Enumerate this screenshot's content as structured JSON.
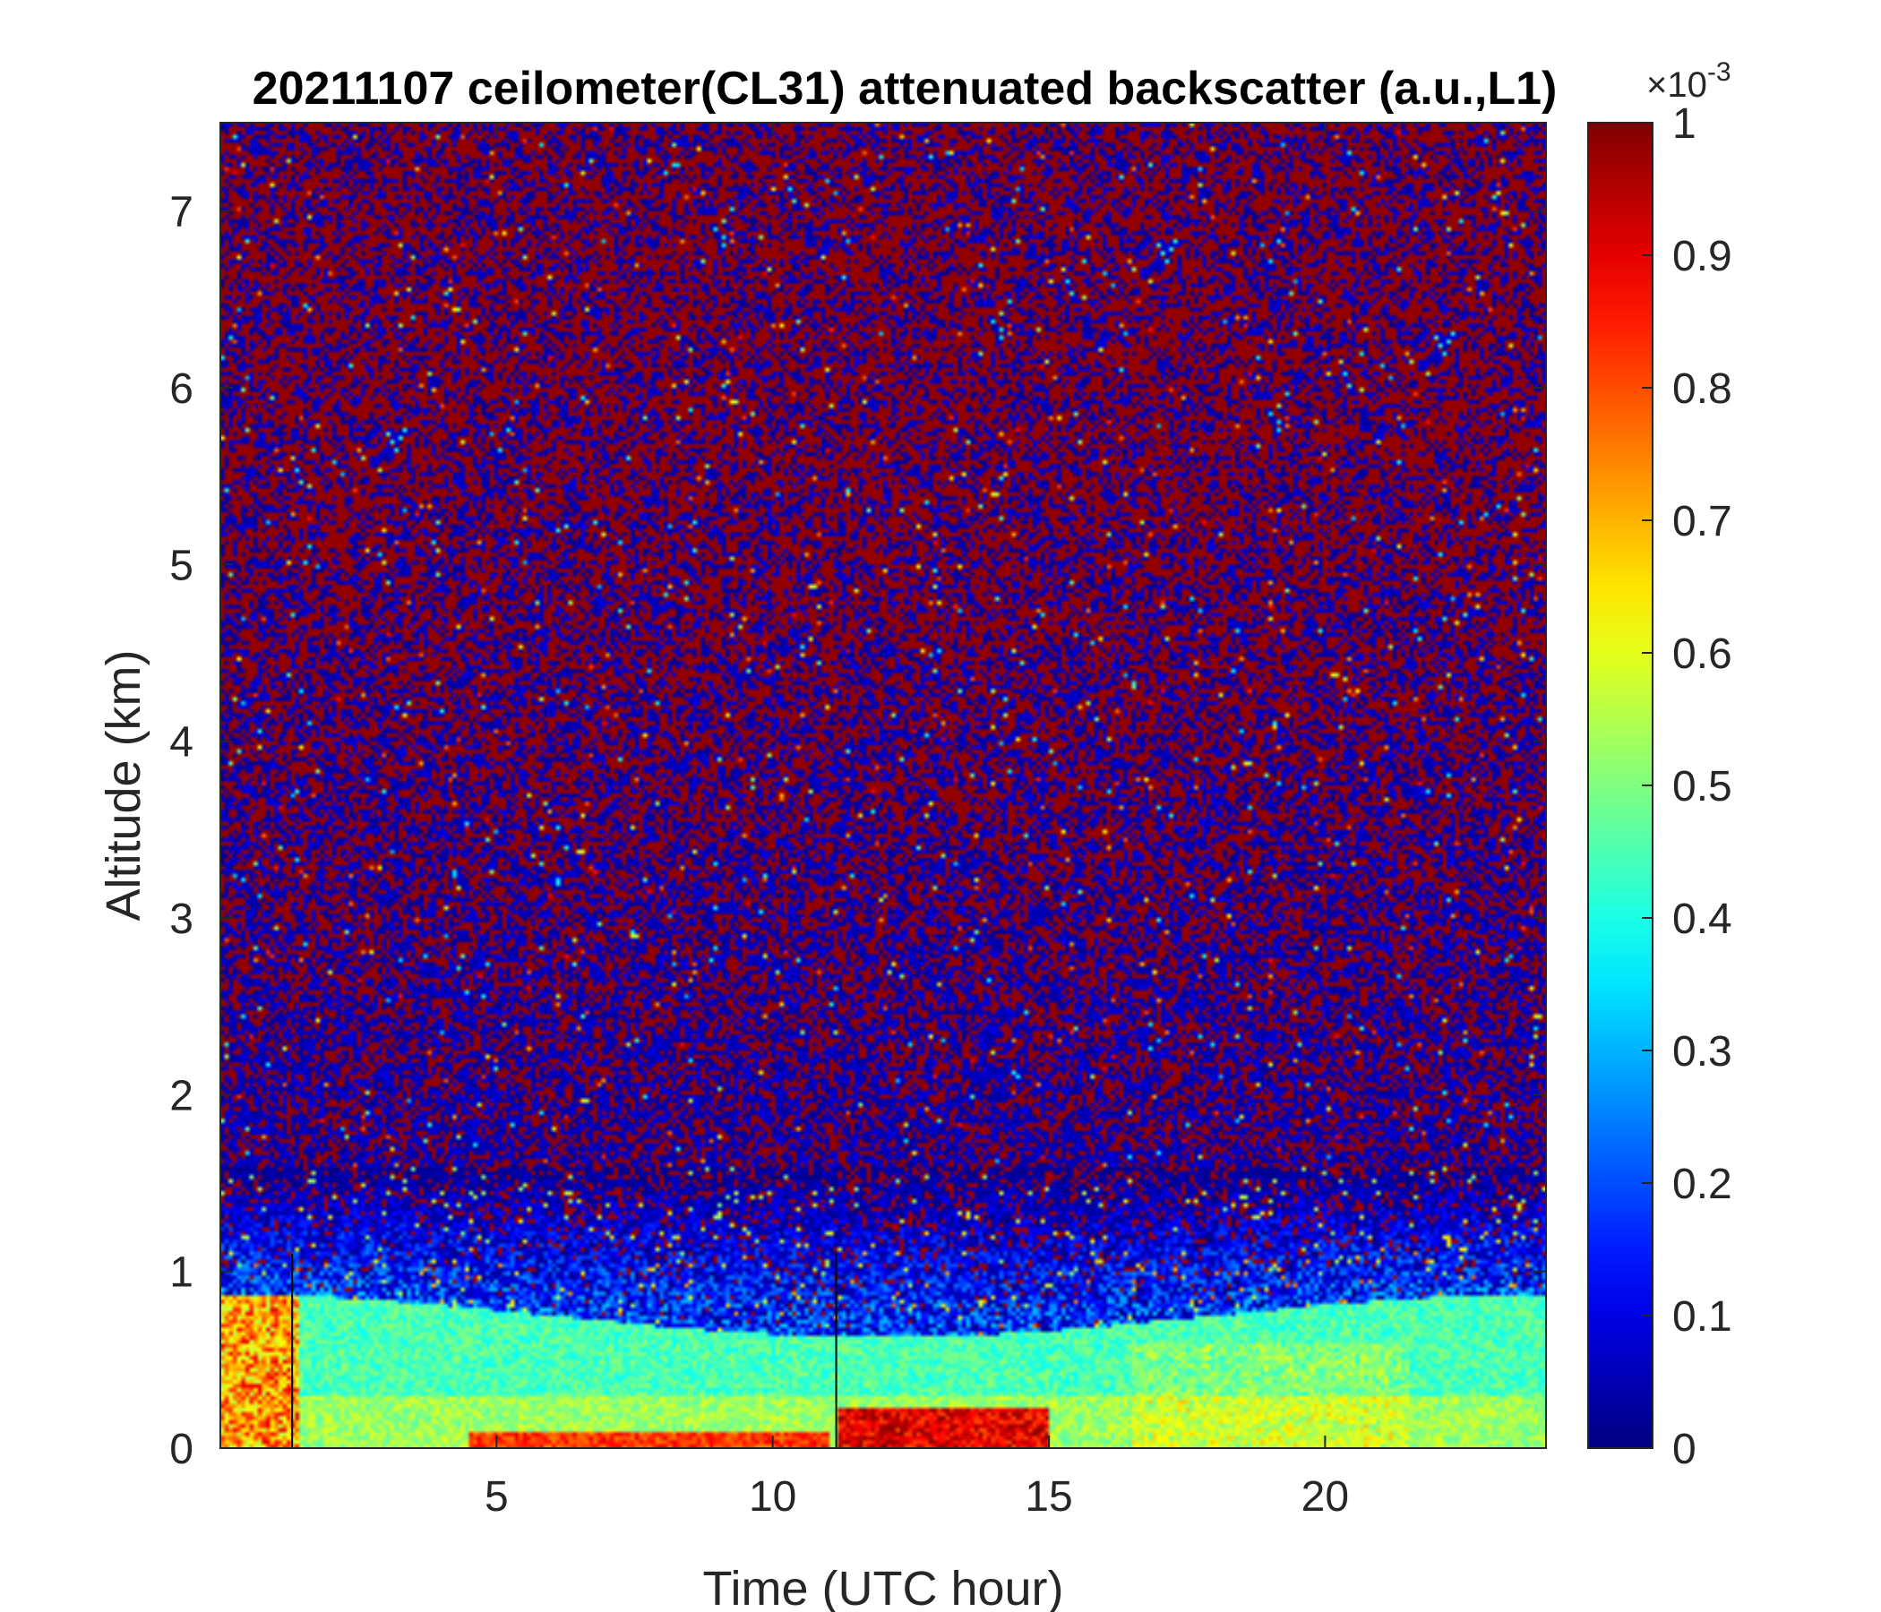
{
  "chart_data": {
    "type": "heatmap",
    "title": "20211107 ceilometer(CL31) attenuated backscatter (a.u.,L1)",
    "xlabel": "Time (UTC hour)",
    "ylabel": "Altitude (km)",
    "xlim": [
      0,
      24
    ],
    "ylim": [
      0,
      7.5
    ],
    "xticks": [
      5,
      10,
      15,
      20
    ],
    "xtick_labels": [
      "5",
      "10",
      "15",
      "20"
    ],
    "yticks": [
      0,
      1,
      2,
      3,
      4,
      5,
      6,
      7
    ],
    "ytick_labels": [
      "0",
      "1",
      "2",
      "3",
      "4",
      "5",
      "6",
      "7"
    ],
    "colorbar": {
      "colormap": "jet",
      "min": 0,
      "max": 0.001,
      "exponent_label": "×10",
      "exponent": "-3",
      "ticks": [
        0,
        0.1,
        0.2,
        0.3,
        0.4,
        0.5,
        0.6,
        0.7,
        0.8,
        0.9,
        1
      ],
      "tick_labels": [
        "0",
        "0.1",
        "0.2",
        "0.3",
        "0.4",
        "0.5",
        "0.6",
        "0.7",
        "0.8",
        "0.9",
        "1"
      ]
    },
    "grid": false,
    "features": [
      {
        "description": "aerosol layer",
        "x_range": [
          0,
          24
        ],
        "altitude_km": [
          0,
          0.8
        ],
        "value_range": [
          0.0003,
          0.0007
        ]
      },
      {
        "description": "strong backscatter near surface",
        "x_range": [
          11.2,
          15
        ],
        "altitude_km": [
          0,
          0.25
        ],
        "value_range": [
          0.0008,
          0.001
        ]
      },
      {
        "description": "noise-dominated free troposphere",
        "x_range": [
          0,
          24
        ],
        "altitude_km": [
          1.5,
          7.5
        ],
        "value_range": [
          0,
          0.001
        ]
      }
    ],
    "vertical_lines_x": [
      1.3,
      11.15
    ]
  }
}
